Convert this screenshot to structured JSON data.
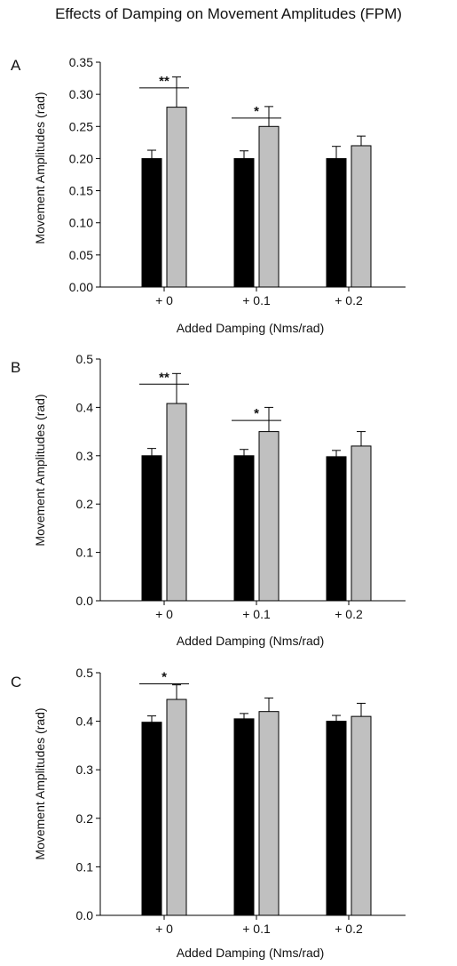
{
  "figure": {
    "title": "Effects of Damping on Movement Amplitudes (FPM)"
  },
  "colors": {
    "dark_bar": "#000000",
    "light_bar": "#c0c0c0",
    "axis": "#000000"
  },
  "chart_data": [
    {
      "type": "bar",
      "panel_label": "A",
      "categories": [
        "+ 0",
        "+ 0.1",
        "+ 0.2"
      ],
      "xlabel": "Added Damping (Nms/rad)",
      "ylabel": "Movement Amplitudes (rad)",
      "ylim": [
        0,
        0.35
      ],
      "yticks": [
        "0.00",
        "0.05",
        "0.10",
        "0.15",
        "0.20",
        "0.25",
        "0.30",
        "0.35"
      ],
      "series": [
        {
          "values": [
            0.2,
            0.2,
            0.2
          ],
          "errors": [
            0.013,
            0.012,
            0.019
          ],
          "color": "#000000"
        },
        {
          "values": [
            0.28,
            0.25,
            0.22
          ],
          "errors": [
            0.047,
            0.031,
            0.015
          ],
          "color": "#c0c0c0"
        }
      ],
      "significance": [
        {
          "category": 0,
          "label": "**",
          "y": 0.31
        },
        {
          "category": 1,
          "label": "*",
          "y": 0.263
        }
      ]
    },
    {
      "type": "bar",
      "panel_label": "B",
      "categories": [
        "+ 0",
        "+ 0.1",
        "+ 0.2"
      ],
      "xlabel": "Added Damping (Nms/rad)",
      "ylabel": "Movement Amplitudes (rad)",
      "ylim": [
        0,
        0.5
      ],
      "yticks": [
        "0.0",
        "0.1",
        "0.2",
        "0.3",
        "0.4",
        "0.5"
      ],
      "series": [
        {
          "values": [
            0.3,
            0.3,
            0.298
          ],
          "errors": [
            0.015,
            0.013,
            0.013
          ],
          "color": "#000000"
        },
        {
          "values": [
            0.408,
            0.35,
            0.32
          ],
          "errors": [
            0.062,
            0.05,
            0.03
          ],
          "color": "#c0c0c0"
        }
      ],
      "significance": [
        {
          "category": 0,
          "label": "**",
          "y": 0.448
        },
        {
          "category": 1,
          "label": "*",
          "y": 0.373
        }
      ]
    },
    {
      "type": "bar",
      "panel_label": "C",
      "categories": [
        "+ 0",
        "+ 0.1",
        "+ 0.2"
      ],
      "xlabel": "Added Damping (Nms/rad)",
      "ylabel": "Movement Amplitudes (rad)",
      "ylim": [
        0,
        0.5
      ],
      "yticks": [
        "0.0",
        "0.1",
        "0.2",
        "0.3",
        "0.4",
        "0.5"
      ],
      "series": [
        {
          "values": [
            0.398,
            0.405,
            0.4
          ],
          "errors": [
            0.013,
            0.011,
            0.012
          ],
          "color": "#000000"
        },
        {
          "values": [
            0.445,
            0.42,
            0.41
          ],
          "errors": [
            0.03,
            0.028,
            0.027
          ],
          "color": "#c0c0c0"
        }
      ],
      "significance": [
        {
          "category": 0,
          "label": "*",
          "y": 0.477
        }
      ]
    }
  ]
}
